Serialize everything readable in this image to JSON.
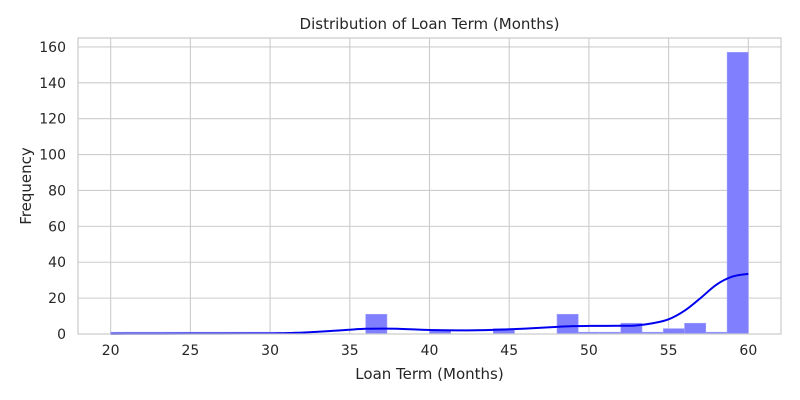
{
  "chart_data": {
    "type": "bar",
    "title": "Distribution of Loan Term (Months)",
    "xlabel": "Loan Term (Months)",
    "ylabel": "Frequency",
    "xlim": [
      17.95,
      62.05
    ],
    "ylim": [
      0,
      165
    ],
    "xticks": [
      20,
      25,
      30,
      35,
      40,
      45,
      50,
      55,
      60
    ],
    "yticks": [
      0,
      20,
      40,
      60,
      80,
      100,
      120,
      140,
      160
    ],
    "grid": true,
    "legend": "none",
    "bin_width": 1.3333,
    "bins": [
      {
        "x0": 20.0,
        "x1": 21.33,
        "count": 1
      },
      {
        "x0": 21.33,
        "x1": 22.67,
        "count": 1
      },
      {
        "x0": 22.67,
        "x1": 24.0,
        "count": 1
      },
      {
        "x0": 24.0,
        "x1": 25.33,
        "count": 1
      },
      {
        "x0": 25.33,
        "x1": 26.67,
        "count": 1
      },
      {
        "x0": 26.67,
        "x1": 28.0,
        "count": 1
      },
      {
        "x0": 28.0,
        "x1": 29.33,
        "count": 1
      },
      {
        "x0": 29.33,
        "x1": 30.67,
        "count": 1
      },
      {
        "x0": 30.67,
        "x1": 32.0,
        "count": 0
      },
      {
        "x0": 32.0,
        "x1": 33.33,
        "count": 0
      },
      {
        "x0": 33.33,
        "x1": 34.67,
        "count": 0
      },
      {
        "x0": 34.67,
        "x1": 36.0,
        "count": 0
      },
      {
        "x0": 36.0,
        "x1": 37.33,
        "count": 11
      },
      {
        "x0": 37.33,
        "x1": 38.67,
        "count": 0
      },
      {
        "x0": 38.67,
        "x1": 40.0,
        "count": 0
      },
      {
        "x0": 40.0,
        "x1": 41.33,
        "count": 2
      },
      {
        "x0": 41.33,
        "x1": 42.67,
        "count": 0
      },
      {
        "x0": 42.67,
        "x1": 44.0,
        "count": 0
      },
      {
        "x0": 44.0,
        "x1": 45.33,
        "count": 3
      },
      {
        "x0": 45.33,
        "x1": 46.67,
        "count": 0
      },
      {
        "x0": 46.67,
        "x1": 48.0,
        "count": 0
      },
      {
        "x0": 48.0,
        "x1": 49.33,
        "count": 11
      },
      {
        "x0": 49.33,
        "x1": 50.67,
        "count": 1
      },
      {
        "x0": 50.67,
        "x1": 52.0,
        "count": 1
      },
      {
        "x0": 52.0,
        "x1": 53.33,
        "count": 6
      },
      {
        "x0": 53.33,
        "x1": 54.67,
        "count": 1
      },
      {
        "x0": 54.67,
        "x1": 56.0,
        "count": 3
      },
      {
        "x0": 56.0,
        "x1": 57.33,
        "count": 6
      },
      {
        "x0": 57.33,
        "x1": 58.67,
        "count": 1
      },
      {
        "x0": 58.67,
        "x1": 60.0,
        "count": 157
      }
    ],
    "kde": {
      "x": [
        20,
        25,
        30,
        32,
        34,
        35,
        36,
        37,
        38,
        40,
        42,
        44,
        46,
        48,
        49,
        50,
        51,
        52,
        53,
        54,
        55,
        56,
        57,
        58,
        59,
        60
      ],
      "y": [
        0.1,
        0.2,
        0.3,
        0.8,
        1.8,
        2.4,
        2.9,
        3.0,
        2.9,
        2.2,
        2.0,
        2.3,
        3.0,
        4.0,
        4.4,
        4.5,
        4.5,
        4.6,
        4.8,
        6.0,
        8.2,
        13.0,
        20.0,
        27.5,
        32.0,
        33.5
      ]
    },
    "colors": {
      "bar_fill": "#8080ff",
      "bar_edge": "#9e9eff",
      "kde_line": "#0000ee",
      "grid": "#cccccc",
      "axis_frame": "#cccccc"
    }
  }
}
